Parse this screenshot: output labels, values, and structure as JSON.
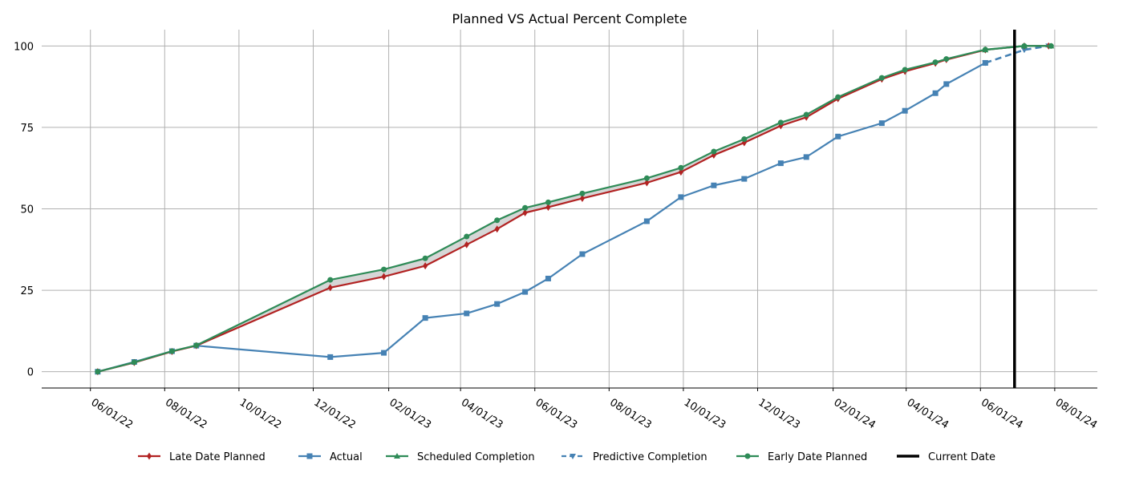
{
  "chart_data": {
    "type": "line",
    "title": "Planned VS Actual Percent Complete",
    "xlabel": "",
    "ylabel": "",
    "x_axis": {
      "type": "date",
      "range": [
        "2022-04-22",
        "2024-09-05"
      ],
      "ticks": [
        "2022-06-01",
        "2022-08-01",
        "2022-10-01",
        "2022-12-01",
        "2023-02-01",
        "2023-04-01",
        "2023-06-01",
        "2023-08-01",
        "2023-10-01",
        "2023-12-01",
        "2024-02-01",
        "2024-04-01",
        "2024-06-01",
        "2024-08-01"
      ],
      "tick_labels": [
        "06/01/22",
        "08/01/22",
        "10/01/22",
        "12/01/22",
        "02/01/23",
        "04/01/23",
        "06/01/23",
        "08/01/23",
        "10/01/23",
        "12/01/23",
        "02/01/24",
        "04/01/24",
        "06/01/24",
        "08/01/24"
      ]
    },
    "y_axis": {
      "range": [
        -5,
        105
      ],
      "ticks": [
        0,
        25,
        50,
        75,
        100
      ],
      "tick_labels": [
        "0",
        "25",
        "50",
        "75",
        "100"
      ]
    },
    "grid": true,
    "legend_position": "bottom",
    "band_fill": "between Late Date Planned and Early Date Planned",
    "series": [
      {
        "name": "Late Date Planned",
        "color": "#b22222",
        "marker": "diamond",
        "dashed": false,
        "points": [
          [
            "2022-06-07",
            0
          ],
          [
            "2022-07-07",
            2.8
          ],
          [
            "2022-08-07",
            6.2
          ],
          [
            "2022-08-27",
            8.0
          ],
          [
            "2022-12-15",
            25.8
          ],
          [
            "2023-01-28",
            29.2
          ],
          [
            "2023-03-03",
            32.5
          ],
          [
            "2023-04-06",
            39.0
          ],
          [
            "2023-05-01",
            43.8
          ],
          [
            "2023-05-24",
            48.8
          ],
          [
            "2023-06-12",
            50.5
          ],
          [
            "2023-07-10",
            53.2
          ],
          [
            "2023-09-01",
            58.0
          ],
          [
            "2023-09-29",
            61.3
          ],
          [
            "2023-10-26",
            66.5
          ],
          [
            "2023-11-20",
            70.3
          ],
          [
            "2023-12-20",
            75.5
          ],
          [
            "2024-01-10",
            78.1
          ],
          [
            "2024-02-05",
            83.8
          ],
          [
            "2024-03-12",
            89.8
          ],
          [
            "2024-03-31",
            92.2
          ],
          [
            "2024-04-25",
            94.7
          ],
          [
            "2024-05-04",
            95.8
          ],
          [
            "2024-06-05",
            98.8
          ],
          [
            "2024-07-07",
            100
          ],
          [
            "2024-07-27",
            100
          ]
        ]
      },
      {
        "name": "Actual",
        "color": "#4682b4",
        "marker": "square",
        "dashed": false,
        "points": [
          [
            "2022-06-07",
            0
          ],
          [
            "2022-07-07",
            3.0
          ],
          [
            "2022-08-07",
            6.3
          ],
          [
            "2022-08-27",
            8.0
          ],
          [
            "2022-12-15",
            4.5
          ],
          [
            "2023-01-28",
            5.8
          ],
          [
            "2023-03-03",
            16.5
          ],
          [
            "2023-04-06",
            17.9
          ],
          [
            "2023-05-01",
            20.8
          ],
          [
            "2023-05-24",
            24.5
          ],
          [
            "2023-06-12",
            28.6
          ],
          [
            "2023-07-10",
            36.1
          ],
          [
            "2023-09-01",
            46.2
          ],
          [
            "2023-09-29",
            53.6
          ],
          [
            "2023-10-26",
            57.2
          ],
          [
            "2023-11-20",
            59.2
          ],
          [
            "2023-12-20",
            64.0
          ],
          [
            "2024-01-10",
            65.9
          ],
          [
            "2024-02-05",
            72.2
          ],
          [
            "2024-03-12",
            76.3
          ],
          [
            "2024-03-31",
            80.1
          ],
          [
            "2024-04-25",
            85.5
          ],
          [
            "2024-05-04",
            88.3
          ],
          [
            "2024-06-05",
            94.8
          ]
        ]
      },
      {
        "name": "Scheduled Completion",
        "color": "#2e8b57",
        "marker": "triangle-up",
        "dashed": false,
        "points": [
          [
            "2024-06-05",
            98.8
          ],
          [
            "2024-07-07",
            100
          ],
          [
            "2024-07-29",
            100
          ]
        ]
      },
      {
        "name": "Predictive Completion",
        "color": "#4682b4",
        "marker": "triangle-down",
        "dashed": true,
        "points": [
          [
            "2024-06-05",
            94.8
          ],
          [
            "2024-07-07",
            98.8
          ],
          [
            "2024-07-27",
            100
          ]
        ]
      },
      {
        "name": "Early Date Planned",
        "color": "#2e8b57",
        "marker": "circle",
        "dashed": false,
        "points": [
          [
            "2022-06-07",
            0
          ],
          [
            "2022-07-07",
            2.9
          ],
          [
            "2022-08-07",
            6.3
          ],
          [
            "2022-08-27",
            8.1
          ],
          [
            "2022-12-15",
            28.2
          ],
          [
            "2023-01-28",
            31.4
          ],
          [
            "2023-03-03",
            34.8
          ],
          [
            "2023-04-06",
            41.5
          ],
          [
            "2023-05-01",
            46.5
          ],
          [
            "2023-05-24",
            50.3
          ],
          [
            "2023-06-12",
            52.0
          ],
          [
            "2023-07-10",
            54.7
          ],
          [
            "2023-09-01",
            59.4
          ],
          [
            "2023-09-29",
            62.6
          ],
          [
            "2023-10-26",
            67.6
          ],
          [
            "2023-11-20",
            71.4
          ],
          [
            "2023-12-20",
            76.5
          ],
          [
            "2024-01-10",
            78.9
          ],
          [
            "2024-02-05",
            84.3
          ],
          [
            "2024-03-12",
            90.2
          ],
          [
            "2024-03-31",
            92.7
          ],
          [
            "2024-04-25",
            95.0
          ],
          [
            "2024-05-04",
            96.0
          ],
          [
            "2024-06-05",
            98.9
          ],
          [
            "2024-07-07",
            100
          ],
          [
            "2024-07-29",
            100
          ]
        ]
      }
    ],
    "current_date": {
      "name": "Current Date",
      "x": "2024-06-29",
      "color": "#000000"
    }
  }
}
